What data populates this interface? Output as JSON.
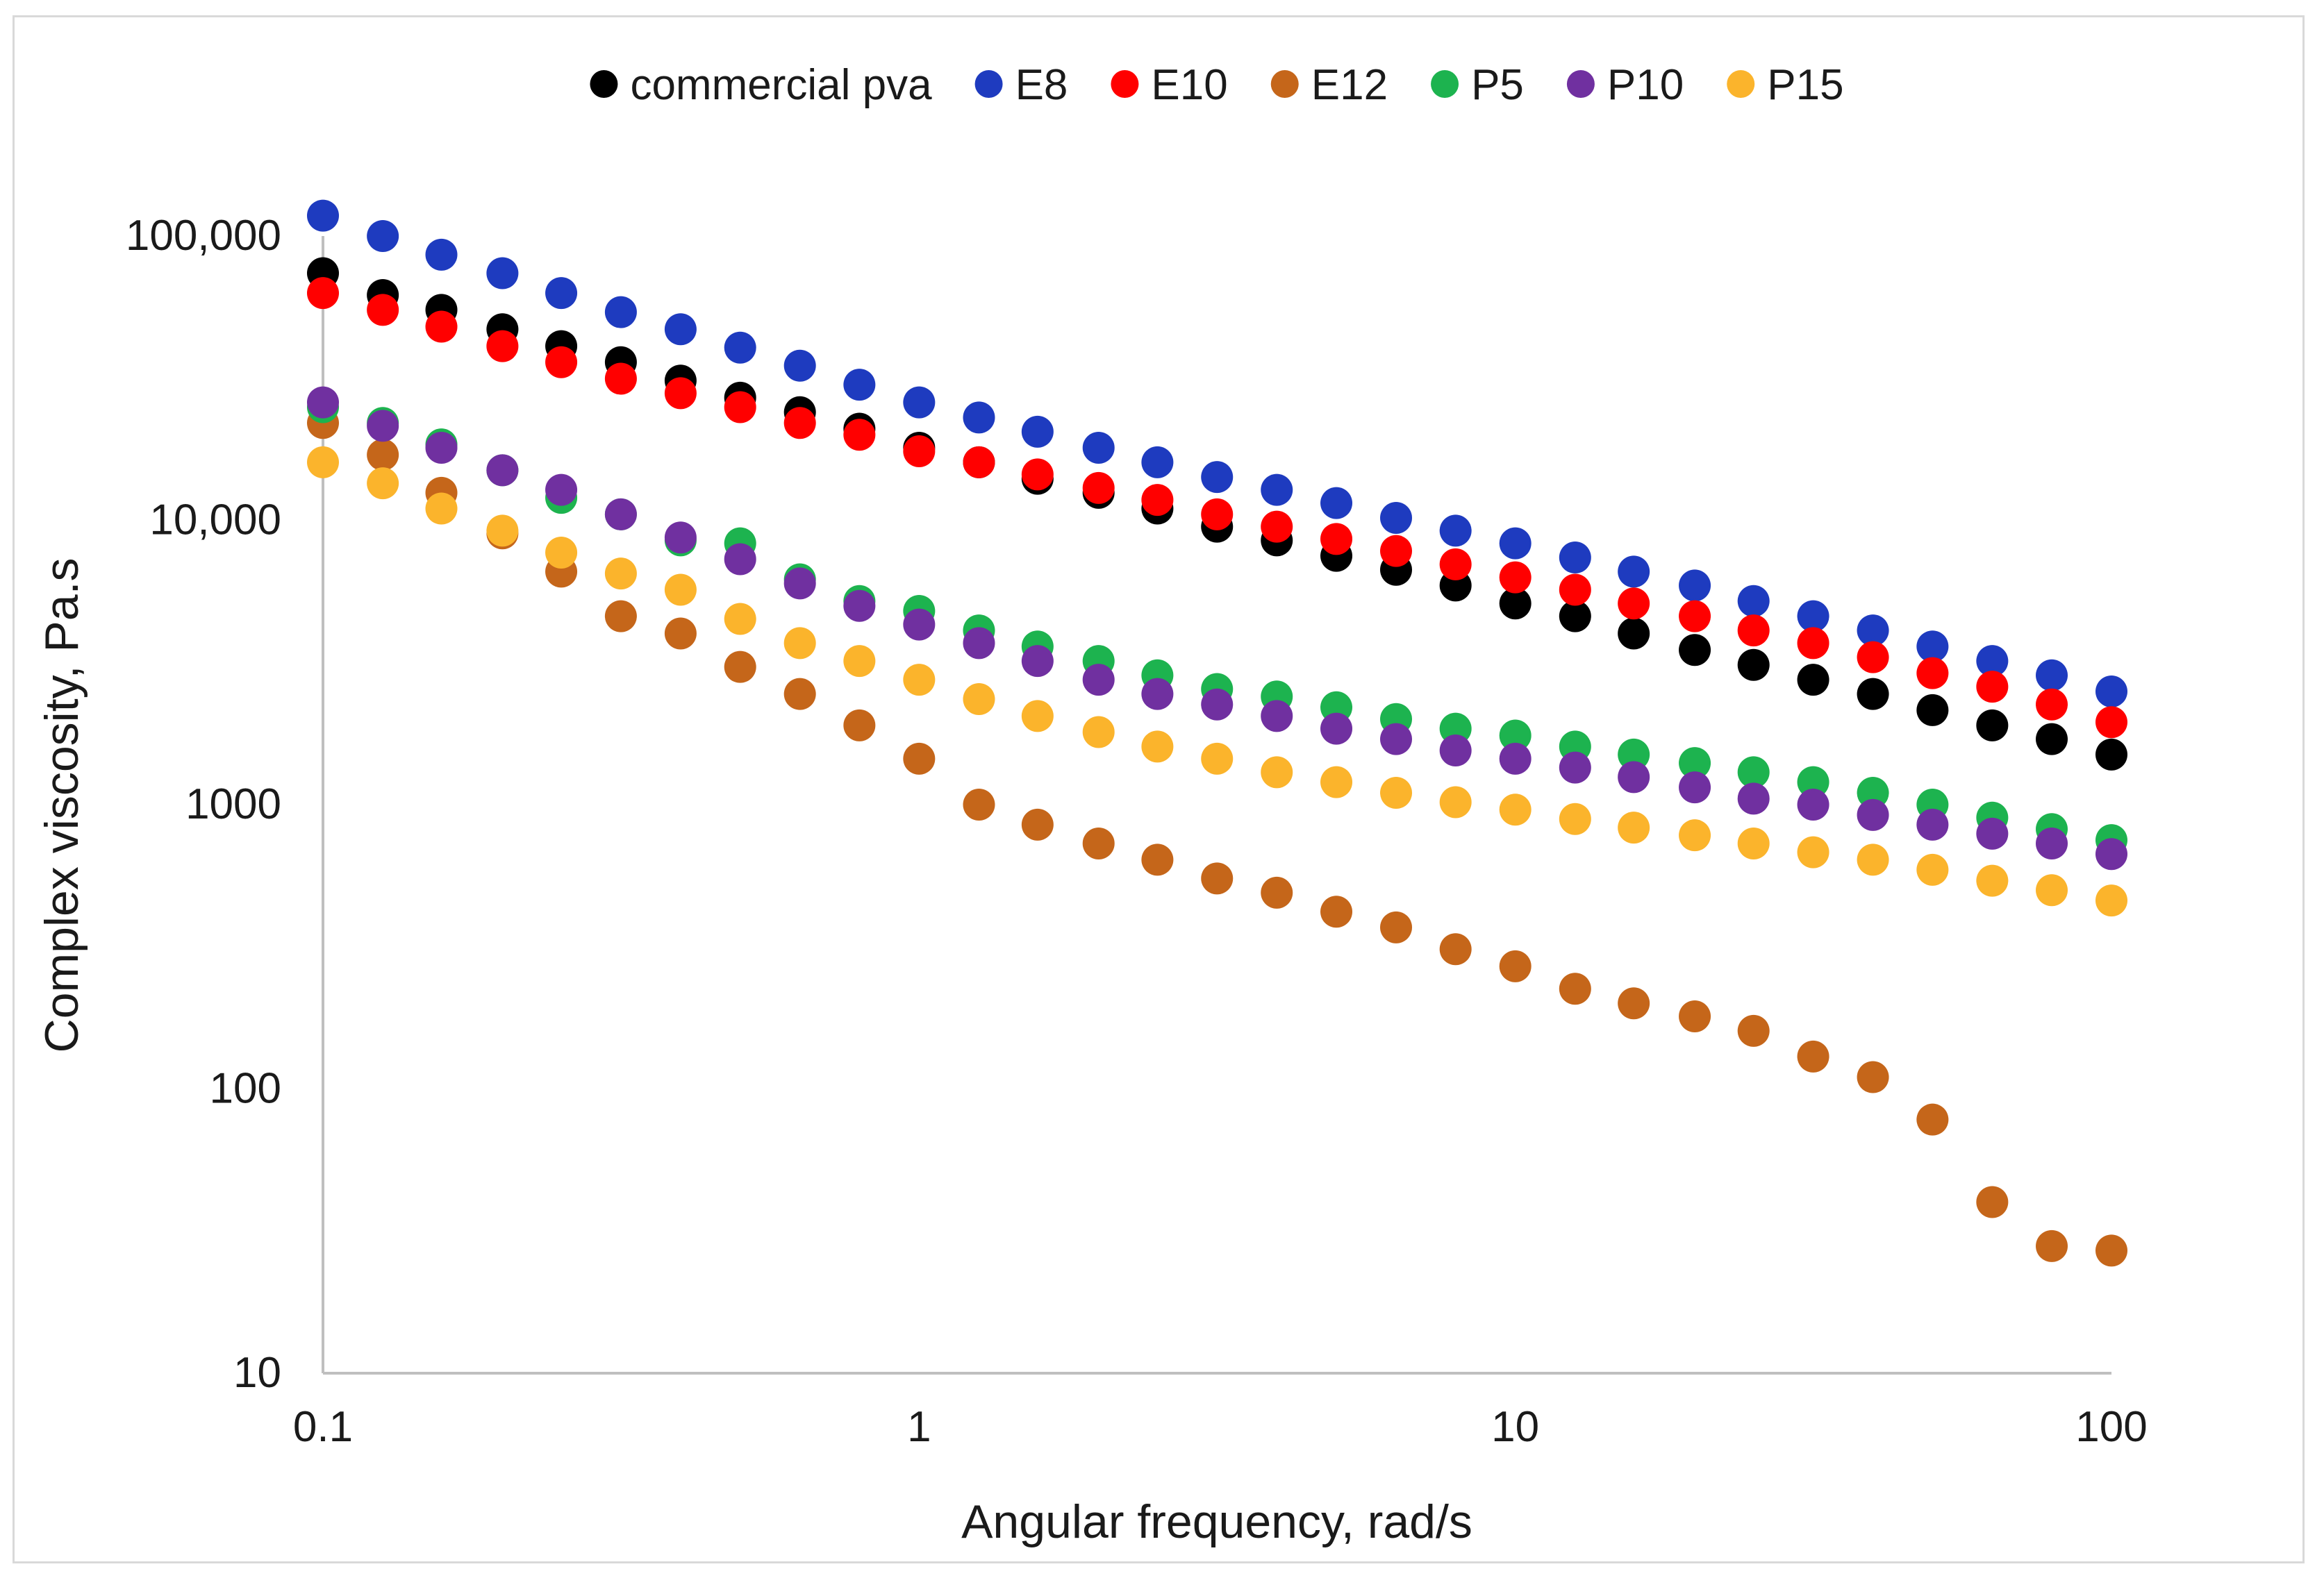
{
  "chart_data": {
    "type": "scatter",
    "title": "",
    "xlabel": "Angular frequency, rad/s",
    "ylabel": "Complex viscosity, Pa.s",
    "xscale": "log",
    "yscale": "log",
    "xlim": [
      0.1,
      100
    ],
    "ylim": [
      10,
      100000
    ],
    "x_ticks": [
      0.1,
      1,
      10,
      100
    ],
    "x_tick_labels": [
      "0.1",
      "1",
      "10",
      "100"
    ],
    "y_ticks": [
      10,
      100,
      1000,
      10000,
      100000
    ],
    "y_tick_labels": [
      "10",
      "100",
      "1000",
      "10,000",
      "100,000"
    ],
    "grid": false,
    "legend_position": "top",
    "x": [
      0.1,
      0.126,
      0.158,
      0.2,
      0.251,
      0.316,
      0.398,
      0.501,
      0.631,
      0.794,
      1,
      1.26,
      1.58,
      2,
      2.51,
      3.16,
      3.98,
      5.01,
      6.31,
      7.94,
      10,
      12.6,
      15.8,
      20,
      25.1,
      31.6,
      39.8,
      50.1,
      63.1,
      79.4,
      100
    ],
    "series": [
      {
        "name": "commercial pva",
        "color": "#000000",
        "values": [
          74000,
          62000,
          55000,
          47000,
          41000,
          36000,
          31000,
          27000,
          24000,
          21000,
          18000,
          16000,
          14000,
          12500,
          11000,
          9500,
          8500,
          7500,
          6700,
          5900,
          5100,
          4600,
          4000,
          3500,
          3100,
          2750,
          2450,
          2150,
          1900,
          1700,
          1500
        ]
      },
      {
        "name": "E8",
        "color": "#1e3bbf",
        "values": [
          118000,
          100000,
          86000,
          74000,
          63000,
          54000,
          47000,
          40500,
          35000,
          30000,
          26000,
          23000,
          20500,
          18000,
          16000,
          14200,
          12800,
          11500,
          10200,
          9200,
          8300,
          7400,
          6600,
          5900,
          5200,
          4600,
          4100,
          3600,
          3200,
          2850,
          2500
        ]
      },
      {
        "name": "E10",
        "color": "#ff0000",
        "values": [
          63000,
          55000,
          48000,
          41000,
          36000,
          31500,
          28000,
          25000,
          22000,
          20000,
          17500,
          16000,
          14500,
          13000,
          11800,
          10500,
          9500,
          8600,
          7800,
          7000,
          6300,
          5700,
          5100,
          4600,
          4100,
          3700,
          3300,
          2900,
          2600,
          2250,
          1950
        ]
      },
      {
        "name": "E12",
        "color": "#c5661a",
        "values": [
          22000,
          17000,
          12500,
          9000,
          6600,
          4600,
          4000,
          3050,
          2450,
          1900,
          1450,
          1000,
          850,
          730,
          640,
          550,
          490,
          420,
          370,
          310,
          270,
          225,
          200,
          180,
          160,
          130,
          110,
          78,
          40,
          28,
          27
        ]
      },
      {
        "name": "P5",
        "color": "#1db34f",
        "values": [
          25000,
          22000,
          18500,
          15000,
          12000,
          10500,
          8500,
          8300,
          6200,
          5200,
          4800,
          4100,
          3600,
          3200,
          2850,
          2550,
          2400,
          2200,
          2000,
          1850,
          1750,
          1600,
          1500,
          1400,
          1300,
          1200,
          1100,
          1000,
          900,
          820,
          750
        ]
      },
      {
        "name": "P10",
        "color": "#7030a0",
        "values": [
          26000,
          21500,
          18000,
          15000,
          12800,
          10500,
          8700,
          7300,
          6000,
          5000,
          4300,
          3700,
          3200,
          2750,
          2450,
          2250,
          2050,
          1850,
          1700,
          1550,
          1450,
          1350,
          1250,
          1150,
          1050,
          1000,
          920,
          850,
          790,
          730,
          670
        ]
      },
      {
        "name": "P15",
        "color": "#fbb42c",
        "values": [
          16000,
          13500,
          11000,
          9200,
          7700,
          6500,
          5700,
          4500,
          3700,
          3200,
          2750,
          2350,
          2050,
          1800,
          1600,
          1450,
          1300,
          1200,
          1100,
          1020,
          960,
          890,
          830,
          780,
          730,
          680,
          640,
          590,
          540,
          500,
          460
        ]
      }
    ]
  }
}
